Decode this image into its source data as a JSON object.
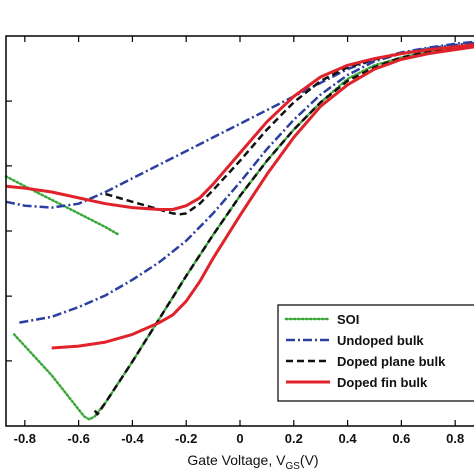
{
  "chart_data": {
    "type": "line",
    "xlabel_main": "Gate Voltage, V",
    "xlabel_sub": "GS",
    "xlabel_unit": "(V)",
    "ylabel": "",
    "xlim": [
      -0.87,
      0.87
    ],
    "ylim": [
      0,
      1
    ],
    "x_ticks": [
      -0.8,
      -0.6,
      -0.4,
      -0.2,
      0,
      0.2,
      0.4,
      0.6,
      0.8
    ],
    "x_tick_labels": [
      "-0.8",
      "-0.6",
      "-0.4",
      "-0.2",
      "0",
      "0.2",
      "0.4",
      "0.6",
      "0.8"
    ],
    "y_ticks": [
      0.167,
      0.333,
      0.5,
      0.667,
      0.833
    ],
    "grid": false,
    "legend_position": "bottom-right",
    "series": [
      {
        "name": "SOI",
        "color": "#3aa83a",
        "dash": "dotted",
        "width": 2.5,
        "branches": [
          {
            "x": [
              -0.87,
              -0.8,
              -0.7,
              -0.6,
              -0.5,
              -0.45
            ],
            "y": [
              0.64,
              0.615,
              0.58,
              0.545,
              0.51,
              0.49
            ]
          },
          {
            "x": [
              -0.84,
              -0.78,
              -0.7,
              -0.62,
              -0.58,
              -0.56,
              -0.54,
              -0.5,
              -0.4,
              -0.3,
              -0.2,
              -0.1,
              0,
              0.1,
              0.2,
              0.3,
              0.4,
              0.5,
              0.6,
              0.7,
              0.8,
              0.87
            ],
            "y": [
              0.235,
              0.19,
              0.13,
              0.06,
              0.025,
              0.017,
              0.025,
              0.06,
              0.165,
              0.275,
              0.385,
              0.49,
              0.59,
              0.68,
              0.76,
              0.83,
              0.89,
              0.925,
              0.945,
              0.96,
              0.97,
              0.98
            ]
          }
        ]
      },
      {
        "name": "Undoped bulk",
        "color": "#2b3f9e",
        "dash": "dashdot",
        "width": 2.5,
        "branches": [
          {
            "x": [
              -0.87,
              -0.8,
              -0.7,
              -0.6,
              -0.5,
              -0.4,
              -0.3,
              -0.2,
              -0.1,
              0,
              0.1,
              0.2,
              0.3,
              0.4,
              0.5,
              0.6,
              0.7,
              0.8,
              0.87
            ],
            "y": [
              0.575,
              0.565,
              0.56,
              0.57,
              0.6,
              0.635,
              0.67,
              0.705,
              0.74,
              0.775,
              0.81,
              0.845,
              0.88,
              0.915,
              0.94,
              0.958,
              0.97,
              0.98,
              0.985
            ]
          },
          {
            "x": [
              -0.82,
              -0.7,
              -0.6,
              -0.5,
              -0.4,
              -0.3,
              -0.2,
              -0.1,
              0,
              0.1,
              0.2,
              0.3,
              0.4,
              0.5,
              0.6,
              0.7,
              0.8,
              0.87
            ],
            "y": [
              0.265,
              0.28,
              0.305,
              0.335,
              0.375,
              0.42,
              0.475,
              0.545,
              0.625,
              0.71,
              0.785,
              0.85,
              0.9,
              0.935,
              0.955,
              0.968,
              0.977,
              0.982
            ]
          }
        ]
      },
      {
        "name": "Doped plane bulk",
        "color": "#111111",
        "dash": "dashed",
        "width": 2.5,
        "branches": [
          {
            "x": [
              -0.5,
              -0.4,
              -0.3,
              -0.25,
              -0.22,
              -0.2,
              -0.18,
              -0.15,
              -0.1,
              0,
              0.1,
              0.2,
              0.3,
              0.4,
              0.5,
              0.6,
              0.7,
              0.8,
              0.87
            ],
            "y": [
              0.595,
              0.575,
              0.555,
              0.545,
              0.543,
              0.545,
              0.555,
              0.57,
              0.605,
              0.68,
              0.76,
              0.83,
              0.885,
              0.92,
              0.94,
              0.955,
              0.965,
              0.972,
              0.978
            ]
          },
          {
            "x": [
              -0.54,
              -0.53,
              -0.5,
              -0.4,
              -0.3,
              -0.2,
              -0.1,
              0,
              0.1,
              0.2,
              0.3,
              0.4,
              0.5,
              0.6,
              0.7,
              0.8,
              0.87
            ],
            "y": [
              0.04,
              0.03,
              0.06,
              0.165,
              0.275,
              0.385,
              0.49,
              0.59,
              0.68,
              0.76,
              0.83,
              0.885,
              0.92,
              0.945,
              0.96,
              0.97,
              0.977
            ]
          }
        ]
      },
      {
        "name": "Doped fin bulk",
        "color": "#e0232b",
        "dash": "solid",
        "width": 3,
        "branches": [
          {
            "x": [
              -0.87,
              -0.8,
              -0.7,
              -0.6,
              -0.5,
              -0.4,
              -0.3,
              -0.25,
              -0.2,
              -0.15,
              -0.1,
              0,
              0.1,
              0.2,
              0.3,
              0.4,
              0.5,
              0.6,
              0.7,
              0.8,
              0.87
            ],
            "y": [
              0.615,
              0.61,
              0.6,
              0.585,
              0.57,
              0.56,
              0.555,
              0.555,
              0.565,
              0.585,
              0.62,
              0.7,
              0.78,
              0.845,
              0.895,
              0.925,
              0.942,
              0.955,
              0.965,
              0.972,
              0.978
            ]
          },
          {
            "x": [
              -0.7,
              -0.6,
              -0.5,
              -0.4,
              -0.3,
              -0.25,
              -0.2,
              -0.15,
              -0.1,
              0,
              0.1,
              0.2,
              0.3,
              0.4,
              0.5,
              0.6,
              0.7,
              0.8,
              0.87
            ],
            "y": [
              0.2,
              0.205,
              0.215,
              0.235,
              0.265,
              0.285,
              0.32,
              0.37,
              0.43,
              0.54,
              0.645,
              0.74,
              0.82,
              0.875,
              0.915,
              0.94,
              0.955,
              0.965,
              0.972
            ]
          }
        ]
      }
    ]
  }
}
